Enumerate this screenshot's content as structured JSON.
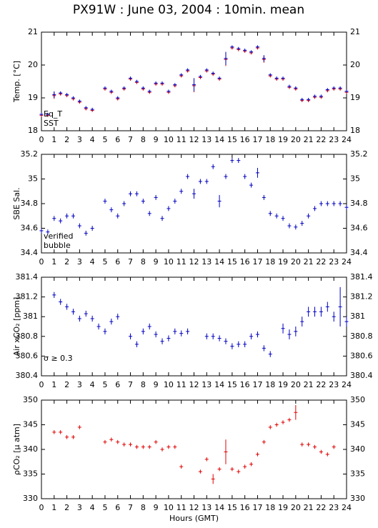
{
  "title": "PX91W : June 03, 2004 : 10min. mean",
  "chart_data": [
    {
      "type": "errorbar",
      "ylabel": "Temp. [°C]",
      "xlim": [
        0,
        24
      ],
      "xticks": [
        0,
        1,
        2,
        3,
        4,
        5,
        6,
        7,
        8,
        9,
        10,
        11,
        12,
        13,
        14,
        15,
        16,
        17,
        18,
        19,
        20,
        21,
        22,
        23,
        24
      ],
      "ylim": [
        18,
        21
      ],
      "yticks": [
        18,
        19,
        20,
        21
      ],
      "legend": "lower left",
      "x": [
        0,
        0.5,
        1,
        1.5,
        2,
        2.5,
        3,
        3.5,
        4,
        4.5,
        5,
        5.5,
        6,
        6.5,
        7,
        7.5,
        8,
        8.5,
        9,
        9.5,
        10,
        10.5,
        11,
        11.5,
        12,
        12.5,
        13,
        13.5,
        14,
        14.5,
        15,
        15.5,
        16,
        16.5,
        17,
        17.5,
        18,
        18.5,
        19,
        19.5,
        20,
        20.5,
        21,
        21.5,
        22,
        22.5,
        23,
        23.5,
        24
      ],
      "series": [
        {
          "name": "Eq_T",
          "color": "#e00000",
          "values": [
            18.47,
            18.47,
            19.07,
            19.12,
            19.07,
            18.97,
            18.87,
            18.67,
            18.62,
            null,
            19.27,
            19.17,
            18.97,
            19.27,
            19.57,
            19.47,
            19.27,
            19.17,
            19.42,
            19.42,
            19.17,
            19.37,
            19.67,
            19.82,
            19.37,
            19.62,
            19.82,
            19.72,
            19.57,
            20.17,
            20.52,
            20.47,
            20.42,
            20.37,
            20.52,
            20.17,
            19.67,
            19.57,
            19.57,
            19.32,
            19.27,
            18.92,
            18.92,
            19.02,
            19.02,
            19.22,
            19.27,
            19.27,
            19.17
          ],
          "errors": [
            0.05,
            0.05,
            0.1,
            0.05,
            0.05,
            0.05,
            0.05,
            0.05,
            0.05,
            null,
            0.05,
            0.05,
            0.05,
            0.05,
            0.05,
            0.05,
            0.05,
            0.05,
            0.05,
            0.05,
            0.05,
            0.05,
            0.05,
            0.05,
            0.2,
            0.05,
            0.05,
            0.05,
            0.05,
            0.2,
            0.05,
            0.05,
            0.05,
            0.05,
            0.05,
            0.1,
            0.05,
            0.05,
            0.05,
            0.05,
            0.05,
            0.05,
            0.05,
            0.05,
            0.05,
            0.05,
            0.05,
            0.05,
            0.05
          ]
        },
        {
          "name": "SST",
          "color": "#0000c0",
          "values": [
            18.5,
            18.5,
            19.1,
            19.15,
            19.1,
            19.0,
            18.9,
            18.7,
            18.65,
            null,
            19.3,
            19.2,
            19.0,
            19.3,
            19.6,
            19.5,
            19.3,
            19.2,
            19.45,
            19.45,
            19.2,
            19.4,
            19.7,
            19.85,
            19.4,
            19.65,
            19.85,
            19.75,
            19.6,
            20.2,
            20.55,
            20.5,
            20.45,
            20.4,
            20.55,
            20.2,
            19.7,
            19.6,
            19.6,
            19.35,
            19.3,
            18.95,
            18.95,
            19.05,
            19.05,
            19.25,
            19.3,
            19.3,
            19.2
          ],
          "errors": [
            0.05,
            0.05,
            0.1,
            0.05,
            0.05,
            0.05,
            0.05,
            0.05,
            0.05,
            null,
            0.05,
            0.05,
            0.05,
            0.05,
            0.05,
            0.05,
            0.05,
            0.05,
            0.05,
            0.05,
            0.05,
            0.05,
            0.05,
            0.05,
            0.2,
            0.05,
            0.05,
            0.05,
            0.05,
            0.2,
            0.05,
            0.05,
            0.05,
            0.05,
            0.05,
            0.1,
            0.05,
            0.05,
            0.05,
            0.05,
            0.05,
            0.05,
            0.05,
            0.05,
            0.05,
            0.05,
            0.05,
            0.05,
            0.05
          ]
        }
      ]
    },
    {
      "type": "errorbar",
      "ylabel": "SBE Sal.",
      "xlim": [
        0,
        24
      ],
      "xticks": [
        0,
        1,
        2,
        3,
        4,
        5,
        6,
        7,
        8,
        9,
        10,
        11,
        12,
        13,
        14,
        15,
        16,
        17,
        18,
        19,
        20,
        21,
        22,
        23,
        24
      ],
      "ylim": [
        34.4,
        35.2
      ],
      "yticks": [
        34.4,
        34.6,
        34.8,
        35,
        35.2
      ],
      "legend": "lower left",
      "x": [
        0,
        0.5,
        1,
        1.5,
        2,
        2.5,
        3,
        3.5,
        4,
        4.5,
        5,
        5.5,
        6,
        6.5,
        7,
        7.5,
        8,
        8.5,
        9,
        9.5,
        10,
        10.5,
        11,
        11.5,
        12,
        12.5,
        13,
        13.5,
        14,
        14.5,
        15,
        15.5,
        16,
        16.5,
        17,
        17.5,
        18,
        18.5,
        19,
        19.5,
        20,
        20.5,
        21,
        21.5,
        22,
        22.5,
        23,
        23.5,
        24
      ],
      "series": [
        {
          "name": "verified",
          "color": "#0000c0",
          "values": [
            34.58,
            34.57,
            34.68,
            34.66,
            34.7,
            34.7,
            34.62,
            34.56,
            34.6,
            null,
            34.82,
            34.75,
            34.7,
            34.8,
            34.88,
            34.88,
            34.82,
            34.72,
            34.85,
            34.68,
            34.76,
            34.82,
            34.9,
            35.02,
            34.88,
            34.98,
            34.98,
            35.1,
            34.82,
            35.02,
            35.15,
            35.15,
            35.02,
            34.95,
            35.05,
            34.85,
            34.72,
            34.7,
            34.68,
            34.62,
            34.61,
            34.64,
            34.7,
            34.76,
            34.8,
            34.8,
            34.8,
            34.8,
            34.77
          ],
          "errors": [
            0.02,
            0.02,
            0.02,
            0.02,
            0.02,
            0.02,
            0.02,
            0.02,
            0.02,
            null,
            0.02,
            0.02,
            0.02,
            0.02,
            0.02,
            0.02,
            0.02,
            0.02,
            0.02,
            0.02,
            0.02,
            0.02,
            0.02,
            0.02,
            0.04,
            0.02,
            0.02,
            0.02,
            0.05,
            0.02,
            0.02,
            0.02,
            0.02,
            0.02,
            0.04,
            0.02,
            0.02,
            0.02,
            0.02,
            0.02,
            0.02,
            0.02,
            0.02,
            0.02,
            0.02,
            0.02,
            0.02,
            0.02,
            0.02
          ]
        },
        {
          "name": "bubble",
          "color": "#d000d0",
          "values": [
            null,
            null,
            null,
            null,
            null,
            null,
            null,
            null,
            null,
            null,
            null,
            null,
            null,
            null,
            null,
            null,
            null,
            null,
            null,
            null,
            null,
            null,
            null,
            null,
            null,
            null,
            null,
            null,
            null,
            null,
            null,
            null,
            null,
            null,
            null,
            null,
            null,
            null,
            null,
            null,
            null,
            null,
            null,
            null,
            null,
            null,
            null,
            null,
            null
          ]
        }
      ]
    },
    {
      "type": "errorbar",
      "ylabel": "Air xCO₂ [ppm]",
      "xlim": [
        0,
        24
      ],
      "xticks": [
        0,
        1,
        2,
        3,
        4,
        5,
        6,
        7,
        8,
        9,
        10,
        11,
        12,
        13,
        14,
        15,
        16,
        17,
        18,
        19,
        20,
        21,
        22,
        23,
        24
      ],
      "ylim": [
        380.4,
        381.4
      ],
      "yticks": [
        380.4,
        380.6,
        380.8,
        381,
        381.2,
        381.4
      ],
      "annotation": {
        "text": "σ ≥ 0.3",
        "color": "#d000d0"
      },
      "x": [
        0,
        0.5,
        1,
        1.5,
        2,
        2.5,
        3,
        3.5,
        4,
        4.5,
        5,
        5.5,
        6,
        6.5,
        7,
        7.5,
        8,
        8.5,
        9,
        9.5,
        10,
        10.5,
        11,
        11.5,
        12,
        12.5,
        13,
        13.5,
        14,
        14.5,
        15,
        15.5,
        16,
        16.5,
        17,
        17.5,
        18,
        18.5,
        19,
        19.5,
        20,
        20.5,
        21,
        21.5,
        22,
        22.5,
        23,
        23.5,
        24
      ],
      "series": [
        {
          "color": "#0000c0",
          "values": [
            null,
            null,
            381.22,
            381.15,
            381.1,
            381.05,
            380.98,
            381.03,
            380.98,
            380.9,
            380.85,
            380.95,
            381.0,
            null,
            380.8,
            380.72,
            380.85,
            380.9,
            380.82,
            380.75,
            380.78,
            380.85,
            380.83,
            380.85,
            null,
            null,
            380.8,
            380.8,
            380.78,
            380.75,
            380.7,
            380.72,
            380.72,
            380.8,
            380.82,
            380.68,
            380.62,
            null,
            380.88,
            380.82,
            380.85,
            380.95,
            381.05,
            381.05,
            381.05,
            381.1,
            381.0,
            381.1,
            380.95
          ],
          "errors": [
            null,
            null,
            0.03,
            0.03,
            0.03,
            0.03,
            0.03,
            0.03,
            0.03,
            0.03,
            0.03,
            0.03,
            0.03,
            null,
            0.03,
            0.03,
            0.03,
            0.03,
            0.03,
            0.03,
            0.03,
            0.03,
            0.03,
            0.03,
            null,
            null,
            0.03,
            0.03,
            0.03,
            0.03,
            0.03,
            0.03,
            0.03,
            0.03,
            0.03,
            0.03,
            0.03,
            null,
            0.05,
            0.05,
            0.05,
            0.05,
            0.05,
            0.05,
            0.05,
            0.05,
            0.05,
            0.2,
            0.05
          ]
        }
      ]
    },
    {
      "type": "errorbar",
      "ylabel": "ρCO₂ [µ atm]",
      "xlabel": "Hours (GMT)",
      "xlim": [
        0,
        24
      ],
      "xticks": [
        0,
        1,
        2,
        3,
        4,
        5,
        6,
        7,
        8,
        9,
        10,
        11,
        12,
        13,
        14,
        15,
        16,
        17,
        18,
        19,
        20,
        21,
        22,
        23,
        24
      ],
      "ylim": [
        330,
        350
      ],
      "yticks": [
        330,
        335,
        340,
        345,
        350
      ],
      "x": [
        0,
        0.5,
        1,
        1.5,
        2,
        2.5,
        3,
        3.5,
        4,
        4.5,
        5,
        5.5,
        6,
        6.5,
        7,
        7.5,
        8,
        8.5,
        9,
        9.5,
        10,
        10.5,
        11,
        11.5,
        12,
        12.5,
        13,
        13.5,
        14,
        14.5,
        15,
        15.5,
        16,
        16.5,
        17,
        17.5,
        18,
        18.5,
        19,
        19.5,
        20,
        20.5,
        21,
        21.5,
        22,
        22.5,
        23,
        23.5,
        24
      ],
      "series": [
        {
          "color": "#e00000",
          "values": [
            null,
            null,
            343.5,
            343.5,
            342.5,
            342.5,
            344.5,
            null,
            null,
            null,
            341.5,
            342,
            341.5,
            341,
            341,
            340.5,
            340.5,
            340.5,
            341.5,
            340,
            340.5,
            340.5,
            336.5,
            null,
            null,
            335.5,
            338,
            334,
            336,
            339.5,
            336,
            335.5,
            336.5,
            337,
            339,
            341.5,
            344.5,
            345,
            345.5,
            346,
            347.5,
            341,
            341,
            340.5,
            339.5,
            339,
            340.5,
            null,
            null
          ],
          "errors": [
            null,
            null,
            0.4,
            0.4,
            0.4,
            0.4,
            0.4,
            null,
            null,
            null,
            0.4,
            0.4,
            0.4,
            0.4,
            0.4,
            0.4,
            0.4,
            0.4,
            0.4,
            0.4,
            0.4,
            0.4,
            0.4,
            null,
            null,
            0.4,
            0.4,
            1,
            0.4,
            2.5,
            0.4,
            0.4,
            0.4,
            0.4,
            0.4,
            0.4,
            0.4,
            0.4,
            0.4,
            0.4,
            1.5,
            0.4,
            0.4,
            0.4,
            0.4,
            0.4,
            0.4,
            null,
            null
          ]
        }
      ]
    }
  ]
}
